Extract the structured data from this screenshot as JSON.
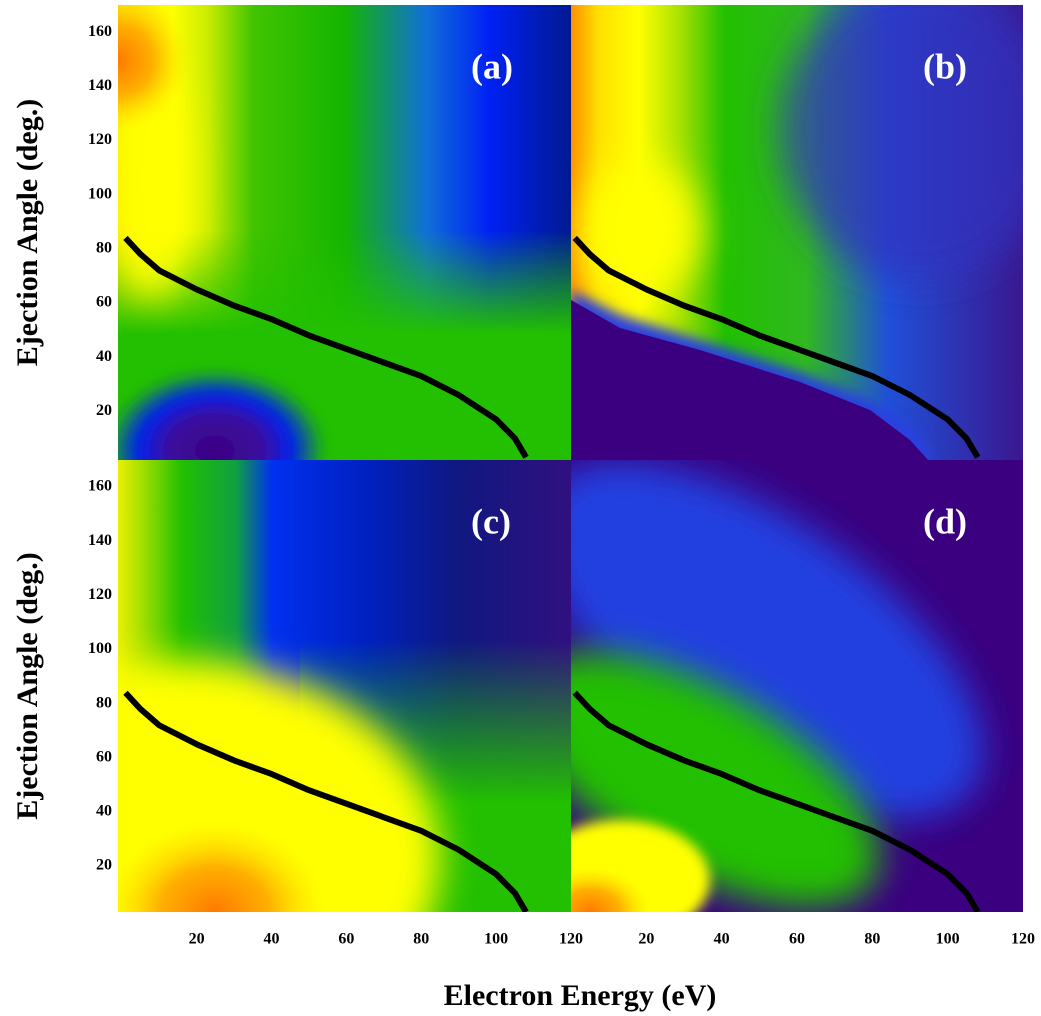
{
  "chart_data": [
    {
      "type": "contour",
      "label": "(a)",
      "ylabel": "Ejection Angle (deg.)",
      "xlim": [
        -1,
        120
      ],
      "ylim": [
        2,
        170
      ],
      "yticks": [
        20,
        40,
        60,
        80,
        100,
        120,
        140,
        160
      ],
      "curve": {
        "x": [
          1,
          5,
          10,
          20,
          30,
          40,
          50,
          60,
          70,
          80,
          90,
          100,
          105,
          108
        ],
        "y": [
          84,
          78,
          72,
          65,
          59,
          54,
          48,
          43,
          38,
          33,
          26,
          17,
          10,
          3
        ]
      }
    },
    {
      "type": "contour",
      "label": "(b)",
      "xlim": [
        0,
        120
      ],
      "ylim": [
        2,
        170
      ],
      "curve": {
        "x": [
          1,
          5,
          10,
          20,
          30,
          40,
          50,
          60,
          70,
          80,
          90,
          100,
          105,
          108
        ],
        "y": [
          84,
          78,
          72,
          65,
          59,
          54,
          48,
          43,
          38,
          33,
          26,
          17,
          10,
          3
        ]
      }
    },
    {
      "type": "contour",
      "label": "(c)",
      "ylabel": "Ejection Angle (deg.)",
      "xlabel": "Electron Energy (eV)",
      "xlim": [
        -1,
        120
      ],
      "ylim": [
        3,
        170
      ],
      "xticks": [
        20,
        40,
        60,
        80,
        100,
        120
      ],
      "yticks": [
        20,
        40,
        60,
        80,
        100,
        120,
        140,
        160
      ],
      "curve": {
        "x": [
          1,
          5,
          10,
          20,
          30,
          40,
          50,
          60,
          70,
          80,
          90,
          100,
          105,
          108
        ],
        "y": [
          84,
          78,
          72,
          65,
          59,
          54,
          48,
          43,
          38,
          33,
          26,
          17,
          10,
          3
        ]
      }
    },
    {
      "type": "contour",
      "label": "(d)",
      "xlim": [
        0,
        120
      ],
      "ylim": [
        3,
        170
      ],
      "xticks": [
        20,
        40,
        60,
        80,
        100,
        120
      ],
      "curve": {
        "x": [
          1,
          5,
          10,
          20,
          30,
          40,
          50,
          60,
          70,
          80,
          90,
          100,
          105,
          108
        ],
        "y": [
          84,
          78,
          72,
          65,
          59,
          54,
          48,
          43,
          38,
          33,
          26,
          17,
          10,
          3
        ]
      }
    }
  ]
}
